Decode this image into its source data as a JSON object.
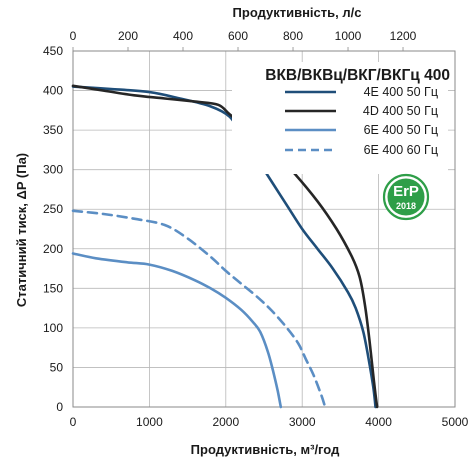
{
  "chart_data": {
    "type": "line",
    "title": "ВКВ/ВКВц/ВКГ/ВКГц 400",
    "xlabel": "Продуктивність, м³/год",
    "x2label": "Продуктивність, л/с",
    "ylabel": "Статичний тиск, ΔP (Па)",
    "xlim": [
      0,
      5000
    ],
    "x2lim": [
      0,
      1389
    ],
    "ylim": [
      0,
      450
    ],
    "x_ticks": [
      0,
      1000,
      2000,
      3000,
      4000,
      5000
    ],
    "x2_ticks": [
      0,
      200,
      400,
      600,
      800,
      1000,
      1200
    ],
    "y_ticks": [
      0,
      50,
      100,
      150,
      200,
      250,
      300,
      350,
      400,
      450
    ],
    "grid": true,
    "legend_position": "top-right",
    "series": [
      {
        "name": "4E 400 50 Гц",
        "color": "#1f4e79",
        "dash": false,
        "points": [
          [
            0,
            405
          ],
          [
            500,
            402
          ],
          [
            1000,
            398
          ],
          [
            1400,
            390
          ],
          [
            1800,
            380
          ],
          [
            2050,
            367
          ],
          [
            2200,
            345
          ],
          [
            2400,
            315
          ],
          [
            2600,
            285
          ],
          [
            2800,
            255
          ],
          [
            3000,
            225
          ],
          [
            3200,
            200
          ],
          [
            3400,
            175
          ],
          [
            3600,
            145
          ],
          [
            3700,
            125
          ],
          [
            3800,
            95
          ],
          [
            3880,
            55
          ],
          [
            3930,
            25
          ],
          [
            3960,
            0
          ]
        ]
      },
      {
        "name": "4D 400 50 Гц",
        "color": "#262626",
        "dash": false,
        "points": [
          [
            0,
            406
          ],
          [
            400,
            400
          ],
          [
            800,
            394
          ],
          [
            1200,
            390
          ],
          [
            1600,
            386
          ],
          [
            1900,
            382
          ],
          [
            2050,
            370
          ],
          [
            2300,
            350
          ],
          [
            2600,
            325
          ],
          [
            2900,
            295
          ],
          [
            3200,
            260
          ],
          [
            3450,
            225
          ],
          [
            3650,
            190
          ],
          [
            3750,
            165
          ],
          [
            3820,
            130
          ],
          [
            3880,
            85
          ],
          [
            3930,
            40
          ],
          [
            3980,
            0
          ]
        ]
      },
      {
        "name": "6E 400 50 Гц",
        "color": "#5b8ec4",
        "dash": false,
        "points": [
          [
            0,
            194
          ],
          [
            300,
            188
          ],
          [
            700,
            183
          ],
          [
            1000,
            180
          ],
          [
            1300,
            172
          ],
          [
            1600,
            160
          ],
          [
            1800,
            150
          ],
          [
            2000,
            138
          ],
          [
            2200,
            123
          ],
          [
            2350,
            108
          ],
          [
            2450,
            95
          ],
          [
            2550,
            70
          ],
          [
            2620,
            45
          ],
          [
            2680,
            20
          ],
          [
            2720,
            0
          ]
        ]
      },
      {
        "name": "6E 400 60 Гц",
        "color": "#5b8ec4",
        "dash": true,
        "points": [
          [
            0,
            248
          ],
          [
            400,
            244
          ],
          [
            800,
            238
          ],
          [
            1200,
            230
          ],
          [
            1500,
            213
          ],
          [
            1800,
            190
          ],
          [
            2000,
            172
          ],
          [
            2200,
            156
          ],
          [
            2400,
            140
          ],
          [
            2600,
            122
          ],
          [
            2800,
            100
          ],
          [
            2950,
            80
          ],
          [
            3050,
            60
          ],
          [
            3150,
            40
          ],
          [
            3250,
            15
          ],
          [
            3300,
            0
          ]
        ]
      }
    ]
  },
  "badge": {
    "text_top": "ErP",
    "text_bottom": "2018",
    "color": "#2e9e48"
  }
}
